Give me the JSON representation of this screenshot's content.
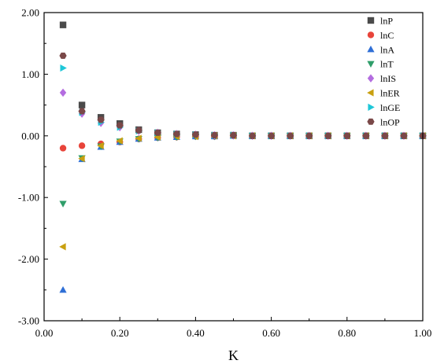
{
  "chart_data": {
    "type": "scatter",
    "title": "",
    "xlabel": "K",
    "ylabel": "",
    "xlim": [
      0.0,
      1.0
    ],
    "ylim": [
      -3.0,
      2.0
    ],
    "xticks": [
      0.0,
      0.2,
      0.4,
      0.6,
      0.8,
      1.0
    ],
    "xtick_labels": [
      "0.00",
      "0.20",
      "0.40",
      "0.60",
      "0.80",
      "1.00"
    ],
    "yticks": [
      -3.0,
      -2.0,
      -1.0,
      0.0,
      1.0,
      2.0
    ],
    "ytick_labels": [
      "-3.00",
      "-2.00",
      "-1.00",
      "0.00",
      "1.00",
      "2.00"
    ],
    "grid": false,
    "legend_position": "top-right",
    "x": [
      0.05,
      0.1,
      0.15,
      0.2,
      0.25,
      0.3,
      0.35,
      0.4,
      0.45,
      0.5,
      0.55,
      0.6,
      0.65,
      0.7,
      0.75,
      0.8,
      0.85,
      0.9,
      0.95,
      1.0
    ],
    "series": [
      {
        "name": "lnP",
        "marker": "square",
        "color": "#4a4a4a",
        "values": [
          1.8,
          0.5,
          0.3,
          0.2,
          0.1,
          0.05,
          0.03,
          0.02,
          0.01,
          0.01,
          0.0,
          0.0,
          0.0,
          0.0,
          0.0,
          0.0,
          0.0,
          0.0,
          0.0,
          0.0
        ]
      },
      {
        "name": "lnC",
        "marker": "circle",
        "color": "#e8443a",
        "values": [
          -0.2,
          -0.16,
          -0.13,
          -0.1,
          -0.05,
          -0.03,
          -0.02,
          -0.01,
          -0.01,
          0.0,
          0.0,
          0.0,
          0.0,
          0.0,
          0.0,
          0.0,
          0.0,
          0.0,
          0.0,
          0.0
        ]
      },
      {
        "name": "lnA",
        "marker": "triangle-up",
        "color": "#2f6fd6",
        "values": [
          -2.5,
          -0.38,
          -0.18,
          -0.1,
          -0.05,
          -0.03,
          -0.02,
          -0.01,
          -0.01,
          0.0,
          0.0,
          0.0,
          0.0,
          0.0,
          0.0,
          0.0,
          0.0,
          0.0,
          0.0,
          0.0
        ]
      },
      {
        "name": "lnT",
        "marker": "triangle-down",
        "color": "#2f9e6a",
        "values": [
          -1.1,
          -0.36,
          -0.17,
          -0.09,
          -0.05,
          -0.03,
          -0.02,
          -0.01,
          -0.01,
          0.0,
          0.0,
          0.0,
          0.0,
          0.0,
          0.0,
          0.0,
          0.0,
          0.0,
          0.0,
          0.0
        ]
      },
      {
        "name": "lnIS",
        "marker": "diamond",
        "color": "#b46de0",
        "values": [
          0.7,
          0.36,
          0.21,
          0.14,
          0.08,
          0.05,
          0.03,
          0.02,
          0.01,
          0.01,
          0.0,
          0.0,
          0.0,
          0.0,
          0.0,
          0.0,
          0.0,
          0.0,
          0.0,
          0.0
        ]
      },
      {
        "name": "lnER",
        "marker": "triangle-left",
        "color": "#c9a010",
        "values": [
          -1.8,
          -0.37,
          -0.16,
          -0.08,
          -0.04,
          -0.02,
          -0.01,
          -0.01,
          0.0,
          0.0,
          0.0,
          0.0,
          0.0,
          0.0,
          0.0,
          0.0,
          0.0,
          0.0,
          0.0,
          0.0
        ]
      },
      {
        "name": "lnGE",
        "marker": "triangle-right",
        "color": "#1ec7d8",
        "values": [
          1.1,
          0.38,
          0.22,
          0.14,
          0.08,
          0.05,
          0.03,
          0.02,
          0.01,
          0.01,
          0.0,
          0.0,
          0.0,
          0.0,
          0.0,
          0.0,
          0.0,
          0.0,
          0.0,
          0.0
        ]
      },
      {
        "name": "lnOP",
        "marker": "hexagon",
        "color": "#7a4848",
        "values": [
          1.3,
          0.4,
          0.26,
          0.17,
          0.09,
          0.05,
          0.03,
          0.02,
          0.01,
          0.01,
          0.0,
          0.0,
          0.0,
          0.0,
          0.0,
          0.0,
          0.0,
          0.0,
          0.0,
          0.0
        ]
      }
    ]
  }
}
